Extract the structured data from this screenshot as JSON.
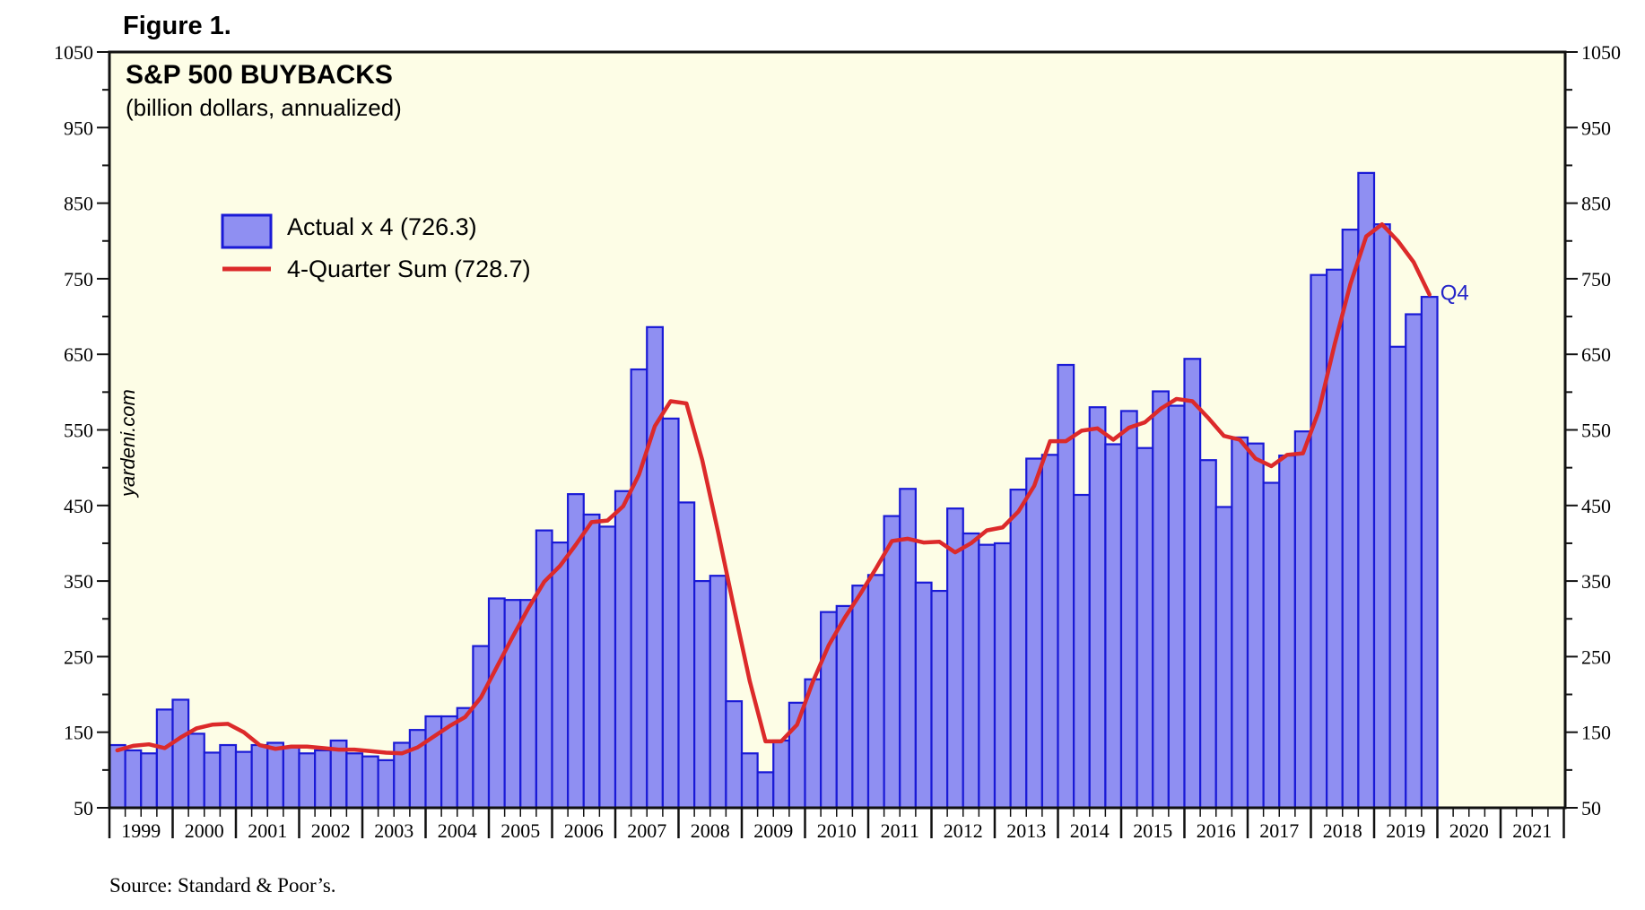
{
  "figure_label": "Figure 1.",
  "source": "Source: Standard & Poor’s.",
  "watermark": "yardeni.com",
  "end_label": "Q4",
  "colors": {
    "plot_bg": "#fdfde6",
    "bar_fill": "#8f8ff2",
    "bar_stroke": "#1a1ad6",
    "line": "#dc2a2a",
    "frame": "#111111",
    "end_label": "#2424c8"
  },
  "chart_data": {
    "type": "bar",
    "title": "S&P 500 BUYBACKS",
    "subtitle": "(billion dollars, annualized)",
    "xlabel": "",
    "ylabel": "",
    "ylim": [
      50,
      1050
    ],
    "yticks": [
      50,
      150,
      250,
      350,
      450,
      550,
      650,
      750,
      850,
      950,
      1050
    ],
    "grid": false,
    "legend_position": "top-left",
    "x_start": "1999 Q1",
    "frequency": "quarterly",
    "year_labels": [
      "1999",
      "2000",
      "2001",
      "2002",
      "2003",
      "2004",
      "2005",
      "2006",
      "2007",
      "2008",
      "2009",
      "2010",
      "2011",
      "2012",
      "2013",
      "2014",
      "2015",
      "2016",
      "2017",
      "2018",
      "2019",
      "2020",
      "2021"
    ],
    "series": [
      {
        "name": "Actual x 4 (726.3)",
        "type": "bar",
        "values": [
          133,
          126,
          122,
          180,
          193,
          148,
          123,
          133,
          124,
          133,
          136,
          131,
          122,
          126,
          139,
          122,
          118,
          113,
          136,
          153,
          171,
          171,
          182,
          264,
          327,
          325,
          325,
          417,
          401,
          465,
          438,
          422,
          469,
          630,
          686,
          565,
          454,
          350,
          357,
          191,
          122,
          97,
          139,
          189,
          220,
          309,
          317,
          344,
          358,
          436,
          472,
          348,
          337,
          446,
          413,
          398,
          400,
          471,
          512,
          517,
          636,
          464,
          580,
          531,
          575,
          526,
          601,
          582,
          644,
          510,
          448,
          540,
          532,
          480,
          516,
          548,
          755,
          762,
          815,
          890,
          822,
          660,
          703,
          726
        ]
      },
      {
        "name": "4-Quarter Sum (728.7)",
        "type": "line",
        "values": [
          126,
          132,
          134,
          129,
          143,
          155,
          160,
          161,
          150,
          133,
          128,
          131,
          131,
          129,
          127,
          127,
          125,
          123,
          122,
          130,
          144,
          158,
          170,
          196,
          236,
          276,
          314,
          349,
          370,
          398,
          428,
          430,
          449,
          491,
          555,
          588,
          585,
          510,
          415,
          315,
          218,
          138,
          138,
          160,
          217,
          265,
          301,
          333,
          367,
          403,
          406,
          401,
          402,
          388,
          400,
          417,
          421,
          442,
          476,
          535,
          535,
          549,
          552,
          537,
          553,
          560,
          578,
          591,
          588,
          566,
          542,
          537,
          512,
          502,
          517,
          519,
          575,
          663,
          743,
          806,
          822,
          800,
          772,
          729
        ]
      }
    ]
  }
}
